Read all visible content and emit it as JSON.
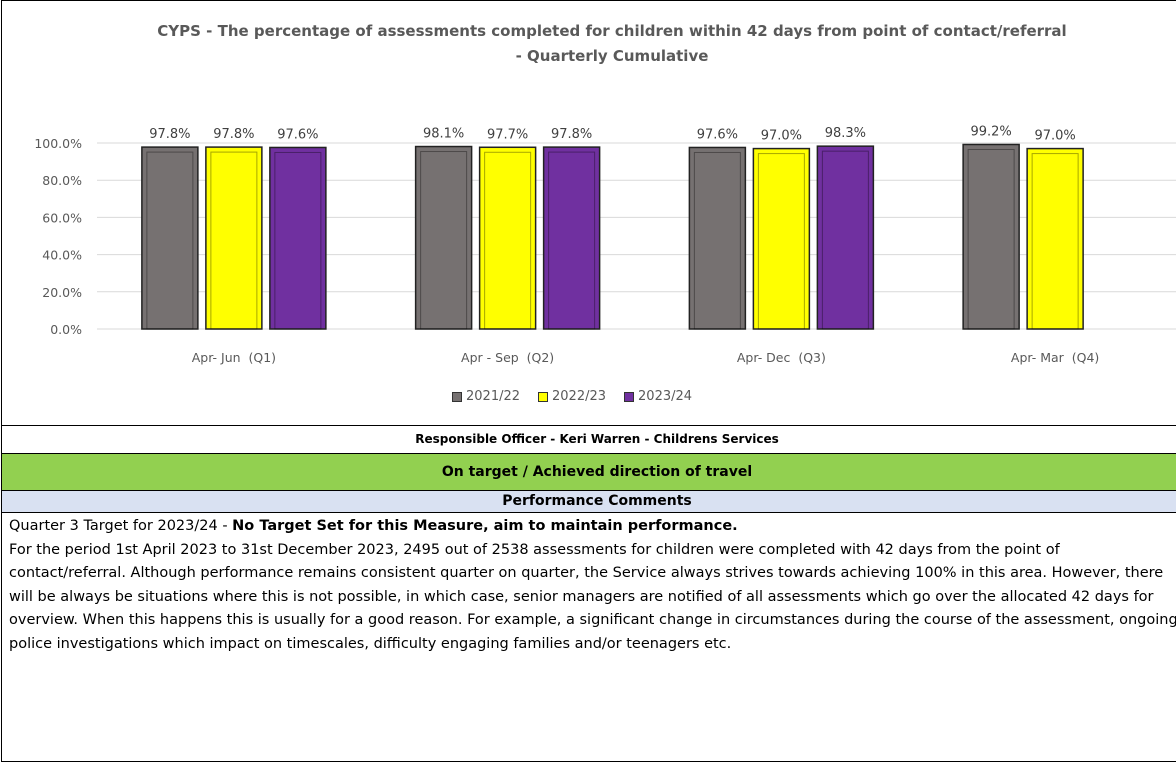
{
  "chart_data": {
    "type": "bar",
    "title": "CYPS - The percentage of assessments completed for children within 42 days from point of contact/referral - Quarterly Cumulative",
    "categories": [
      "Apr- Jun  (Q1)",
      "Apr - Sep  (Q2)",
      "Apr- Dec  (Q3)",
      "Apr- Mar  (Q4)"
    ],
    "series": [
      {
        "name": "2021/22",
        "color": "#767171",
        "values": [
          97.8,
          98.1,
          97.6,
          99.2
        ]
      },
      {
        "name": "2022/23",
        "color": "#ffff00",
        "values": [
          97.8,
          97.7,
          97.0,
          97.0
        ]
      },
      {
        "name": "2023/24",
        "color": "#7030a0",
        "values": [
          97.6,
          97.8,
          98.3,
          null
        ]
      }
    ],
    "value_labels": [
      [
        "97.8%",
        "98.1%",
        "97.6%",
        "99.2%"
      ],
      [
        "97.8%",
        "97.7%",
        "97.0%",
        "97.0%"
      ],
      [
        "97.6%",
        "97.8%",
        "98.3%",
        ""
      ]
    ],
    "yticks": [
      "0.0%",
      "20.0%",
      "40.0%",
      "60.0%",
      "80.0%",
      "100.0%"
    ],
    "ylim": [
      0,
      100
    ],
    "grid": true,
    "legend_position": "bottom"
  },
  "officer": "Responsible Officer - Keri Warren - Childrens Services",
  "status": "On target / Achieved direction of travel",
  "comments_header": "Performance Comments",
  "comments": {
    "target_prefix": "Quarter 3 Target for 2023/24 - ",
    "target_bold": "No Target Set for this Measure, aim to maintain performance.",
    "body": "For the period 1st April 2023 to 31st December 2023, 2495 out of 2538 assessments for children were completed with 42 days from the point of contact/referral. Although performance remains consistent quarter on quarter, the Service always strives towards achieving 100% in this area. However, there will be always be situations where this is not possible, in which case, senior managers are notified of all assessments which go over the allocated 42 days for overview. When this happens this is usually for a good reason. For example, a significant change in circumstances during the course of the assessment, ongoing police investigations which impact on timescales, difficulty engaging families and/or teenagers etc."
  }
}
